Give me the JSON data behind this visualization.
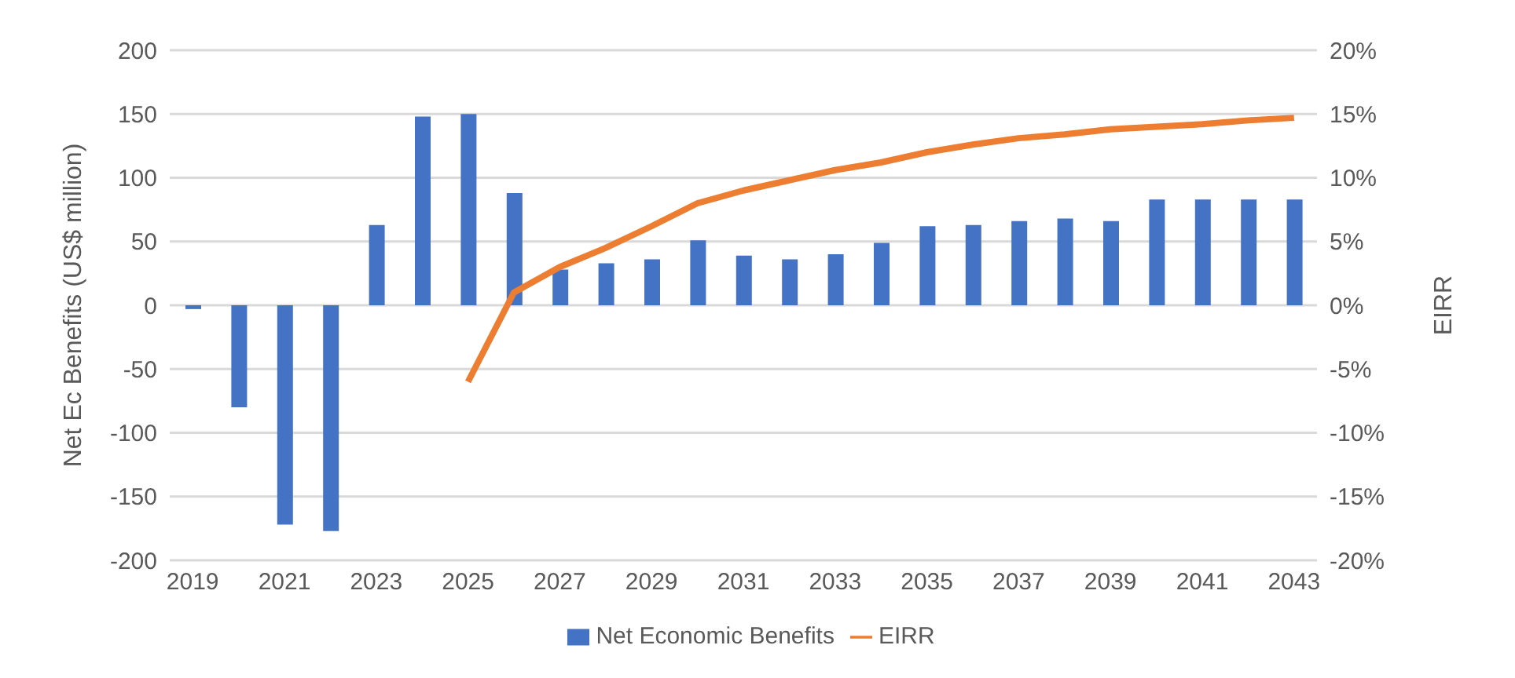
{
  "chart_data": {
    "type": "bar",
    "ylabel": "Net Ec Benefits (US$ million)",
    "y2label": "EIRR",
    "categories": [
      "2019",
      null,
      "2021",
      null,
      "2023",
      null,
      "2025",
      null,
      "2027",
      null,
      "2029",
      null,
      "2031",
      null,
      "2033",
      null,
      "2035",
      null,
      "2037",
      null,
      "2039",
      null,
      "2041",
      null,
      "2043"
    ],
    "series": [
      {
        "name": "Net Economic Benefits",
        "color": "#4472c4",
        "values": [
          -3,
          -80,
          -172,
          -177,
          63,
          148,
          150,
          88,
          28,
          33,
          36,
          51,
          39,
          36,
          40,
          49,
          62,
          63,
          66,
          68,
          66,
          83,
          83,
          83,
          83
        ]
      },
      {
        "name": "EIRR",
        "type": "line",
        "axis": "y2",
        "color": "#ed7d31",
        "values": [
          null,
          null,
          null,
          null,
          null,
          null,
          -6,
          1,
          3,
          4.5,
          6.2,
          8,
          9,
          9.8,
          10.6,
          11.2,
          12,
          12.6,
          13.1,
          13.4,
          13.8,
          14,
          14.2,
          14.5,
          14.7
        ]
      }
    ],
    "ylim": [
      -200,
      200
    ],
    "yticks": [
      -200,
      -150,
      -100,
      -50,
      0,
      50,
      100,
      150,
      200
    ],
    "y2lim": [
      -20,
      20
    ],
    "y2ticks": [
      {
        "value": -20,
        "label": "-20%"
      },
      {
        "value": -15,
        "label": "-15%"
      },
      {
        "value": -10,
        "label": "-10%"
      },
      {
        "value": -5,
        "label": "-5%"
      },
      {
        "value": 0,
        "label": "0%"
      },
      {
        "value": 5,
        "label": "5%"
      },
      {
        "value": 10,
        "label": "10%"
      },
      {
        "value": 15,
        "label": "15%"
      },
      {
        "value": 20,
        "label": "20%"
      }
    ],
    "grid": "y",
    "legend": "bottom",
    "marker": "none"
  }
}
